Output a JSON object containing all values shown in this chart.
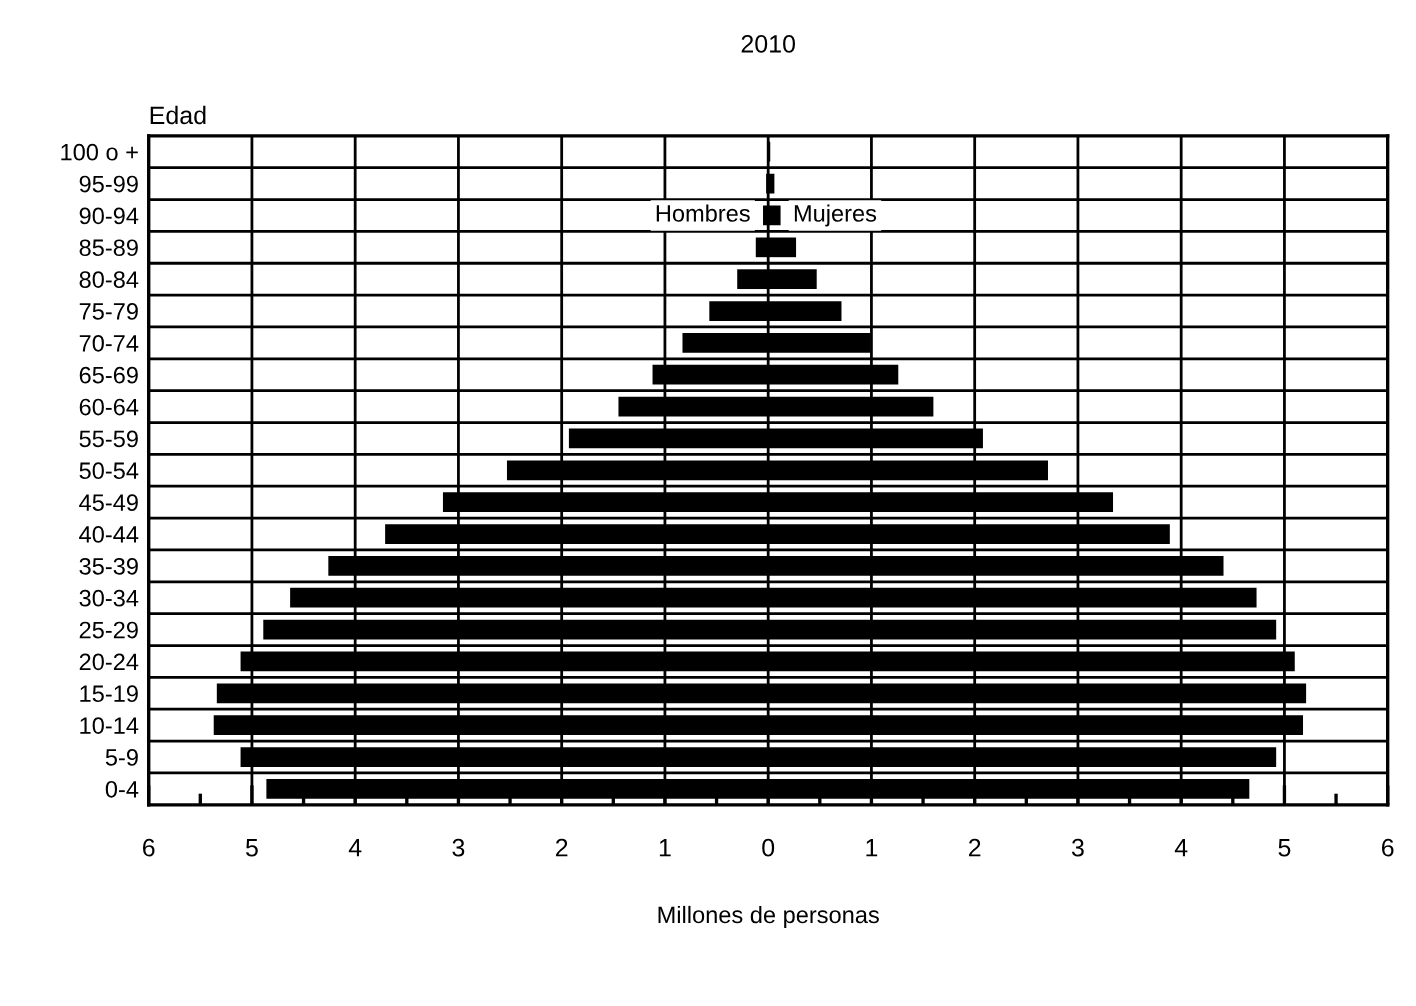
{
  "chart_data": {
    "type": "bar",
    "orientation": "horizontal",
    "title": "2010",
    "xlabel": "Millones de personas",
    "ylabel": "Edad",
    "categories": [
      "100 o +",
      "95-99",
      "90-94",
      "85-89",
      "80-84",
      "75-79",
      "70-74",
      "65-69",
      "60-64",
      "55-59",
      "50-54",
      "45-49",
      "40-44",
      "35-39",
      "30-34",
      "25-29",
      "20-24",
      "15-19",
      "10-14",
      "5-9",
      "0-4"
    ],
    "series": [
      {
        "name": "Hombres",
        "color": "#000000",
        "values": [
          -0.01,
          -0.02,
          -0.05,
          -0.12,
          -0.3,
          -0.57,
          -0.83,
          -1.12,
          -1.45,
          -1.93,
          -2.53,
          -3.15,
          -3.71,
          -4.26,
          -4.63,
          -4.89,
          -5.11,
          -5.34,
          -5.37,
          -5.11,
          -4.86
        ]
      },
      {
        "name": "Mujeres",
        "color": "#000000",
        "values": [
          0.02,
          0.06,
          0.12,
          0.27,
          0.47,
          0.71,
          0.99,
          1.26,
          1.6,
          2.08,
          2.71,
          3.34,
          3.89,
          4.41,
          4.73,
          4.92,
          5.1,
          5.21,
          5.18,
          4.92,
          4.66
        ]
      }
    ],
    "xlim": [
      -6,
      6
    ],
    "xticks": [
      {
        "value": -6,
        "label": "6"
      },
      {
        "value": -5.5,
        "label": null
      },
      {
        "value": -5,
        "label": "5"
      },
      {
        "value": -4.5,
        "label": null
      },
      {
        "value": -4,
        "label": "4"
      },
      {
        "value": -3.5,
        "label": null
      },
      {
        "value": -3,
        "label": "3"
      },
      {
        "value": -2.5,
        "label": null
      },
      {
        "value": -2,
        "label": "2"
      },
      {
        "value": -1.5,
        "label": null
      },
      {
        "value": -1,
        "label": "1"
      },
      {
        "value": -0.5,
        "label": null
      },
      0,
      {
        "value": 0.5,
        "label": null
      },
      1,
      {
        "value": 1.5,
        "label": null
      },
      2,
      {
        "value": 2.5,
        "label": null
      },
      3,
      {
        "value": 3.5,
        "label": null
      },
      4,
      {
        "value": 4.5,
        "label": null
      },
      5,
      {
        "value": 5.5,
        "label": null
      },
      6
    ],
    "grid": true,
    "legend": false,
    "stacked": true
  }
}
